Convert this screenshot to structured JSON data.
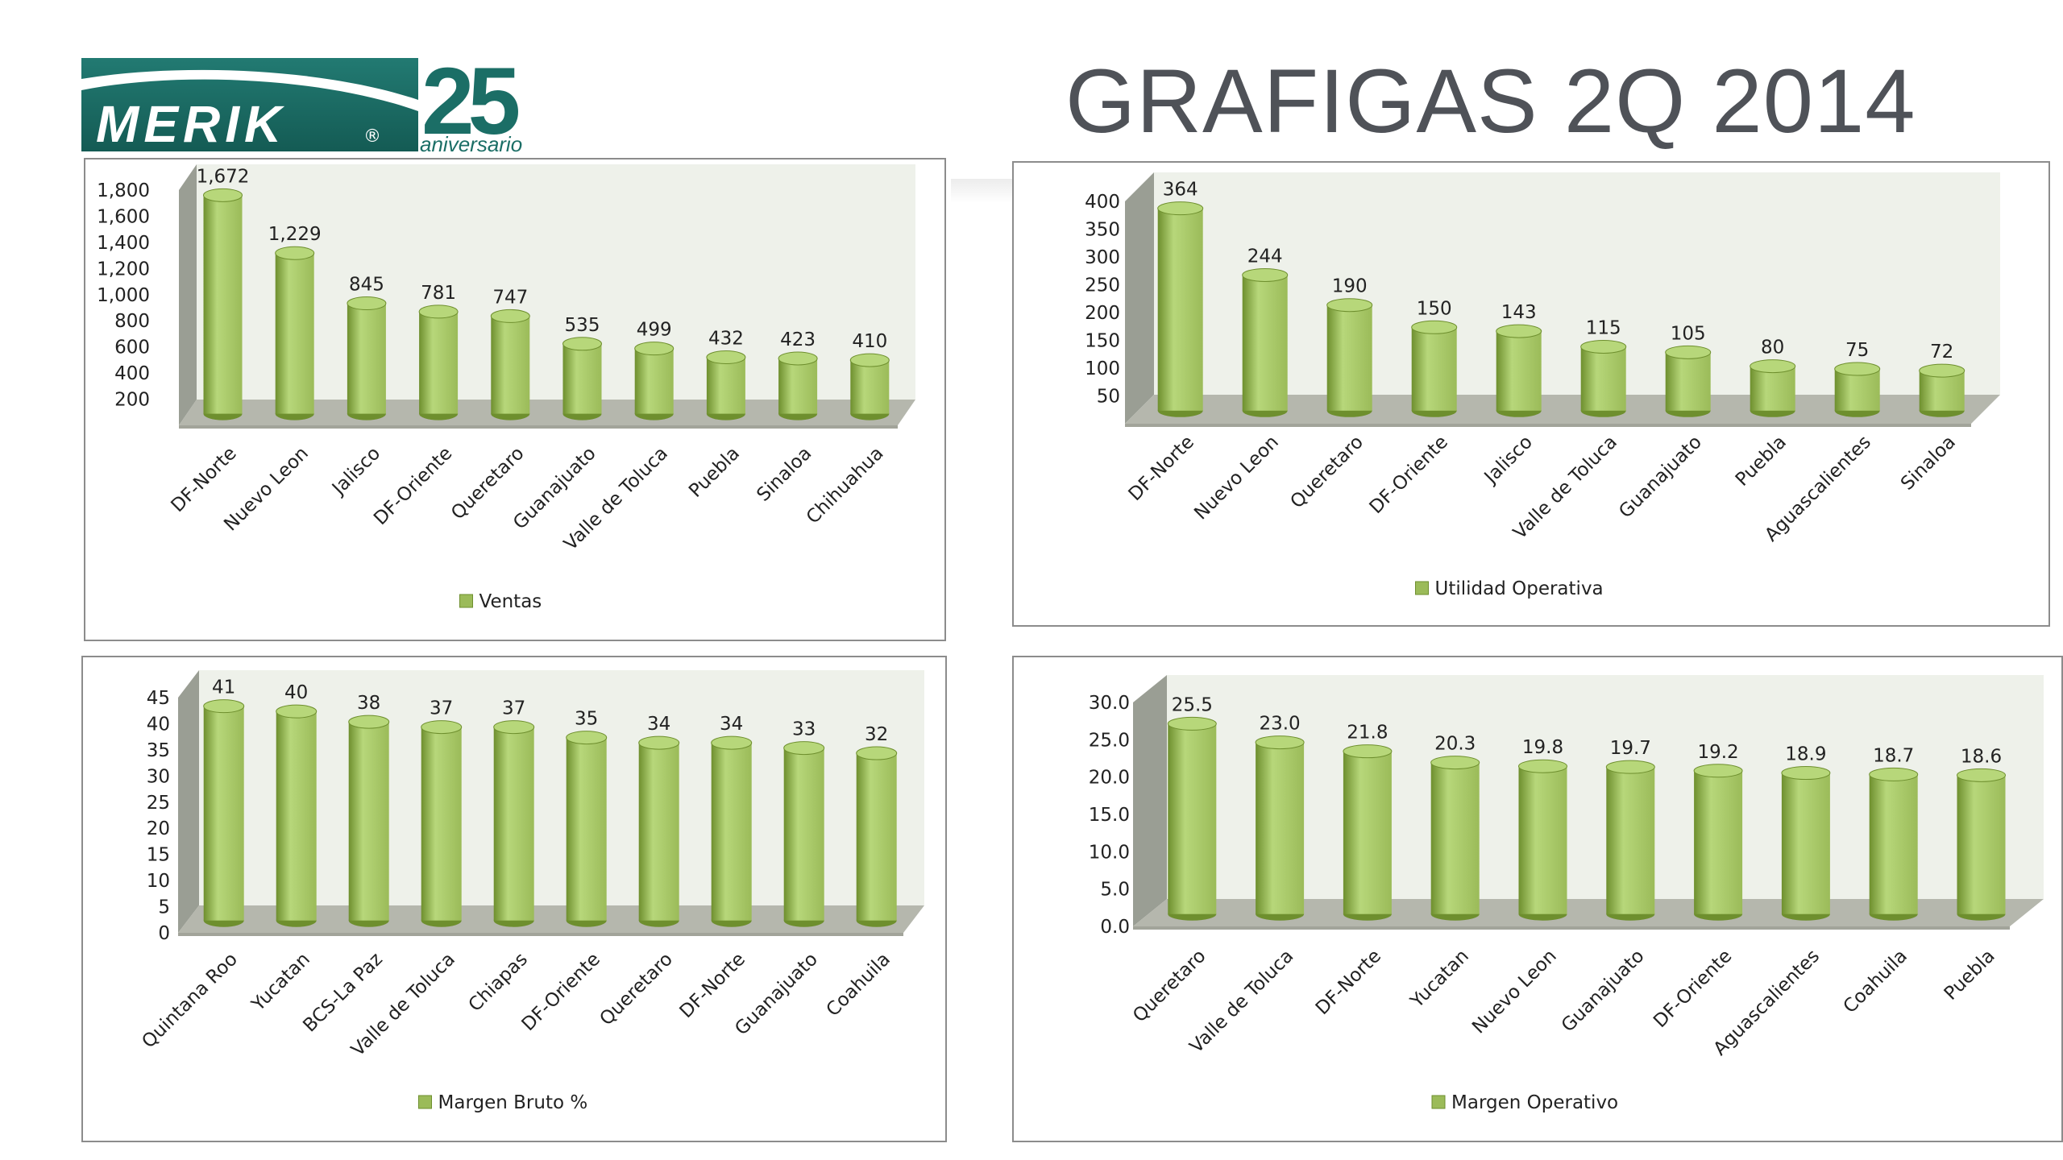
{
  "header": {
    "logo_text": "MERIK",
    "logo_number": "25",
    "logo_subtitle": "aniversario",
    "title": "GRAFIGAS 2Q 2014"
  },
  "colors": {
    "bar_body": "#9bbb59",
    "bar_top": "#b7d77a",
    "bar_dark": "#6e8f2e",
    "floor": "#b5b7ad",
    "back_wall": "#eef1ea",
    "side_wall": "#9a9e94",
    "logo_teal": "#1b6e66"
  },
  "chart_data": [
    {
      "type": "bar",
      "categories": [
        "DF-Norte",
        "Nuevo Leon",
        "Jalisco",
        "DF-Oriente",
        "Queretaro",
        "Guanajuato",
        "Valle de Toluca",
        "Puebla",
        "Sinaloa",
        "Chihuahua"
      ],
      "series": [
        {
          "name": "Ventas",
          "values": [
            1672,
            1229,
            845,
            781,
            747,
            535,
            499,
            432,
            423,
            410
          ]
        }
      ],
      "data_labels": [
        "1,672",
        "1,229",
        "845",
        "781",
        "747",
        "535",
        "499",
        "432",
        "423",
        "410"
      ],
      "ylim": [
        0,
        1800
      ],
      "yticks": [
        200,
        400,
        600,
        800,
        1000,
        1200,
        1400,
        1600,
        1800
      ],
      "ytick_labels": [
        "200",
        "400",
        "600",
        "800",
        "1,000",
        "1,200",
        "1,400",
        "1,600",
        "1,800"
      ],
      "legend": "Ventas",
      "legend_position": "bottom",
      "grid": false
    },
    {
      "type": "bar",
      "categories": [
        "DF-Norte",
        "Nuevo Leon",
        "Queretaro",
        "DF-Oriente",
        "Jalisco",
        "Valle de Toluca",
        "Guanajuato",
        "Puebla",
        "Aguascalientes",
        "Sinaloa"
      ],
      "series": [
        {
          "name": "Utilidad Operativa",
          "values": [
            364,
            244,
            190,
            150,
            143,
            115,
            105,
            80,
            75,
            72
          ]
        }
      ],
      "data_labels": [
        "364",
        "244",
        "190",
        "150",
        "143",
        "115",
        "105",
        "80",
        "75",
        "72"
      ],
      "ylim": [
        0,
        400
      ],
      "yticks": [
        50,
        100,
        150,
        200,
        250,
        300,
        350,
        400
      ],
      "ytick_labels": [
        "50",
        "100",
        "150",
        "200",
        "250",
        "300",
        "350",
        "400"
      ],
      "legend": "Utilidad Operativa",
      "legend_position": "bottom",
      "grid": false
    },
    {
      "type": "bar",
      "categories": [
        "Quintana Roo",
        "Yucatan",
        "BCS-La Paz",
        "Valle de Toluca",
        "Chiapas",
        "DF-Oriente",
        "Queretaro",
        "DF-Norte",
        "Guanajuato",
        "Coahuila"
      ],
      "series": [
        {
          "name": "Margen Bruto %",
          "values": [
            41,
            40,
            38,
            37,
            37,
            35,
            34,
            34,
            33,
            32
          ]
        }
      ],
      "data_labels": [
        "41",
        "40",
        "38",
        "37",
        "37",
        "35",
        "34",
        "34",
        "33",
        "32"
      ],
      "ylim": [
        0,
        45
      ],
      "yticks": [
        0,
        5,
        10,
        15,
        20,
        25,
        30,
        35,
        40,
        45
      ],
      "ytick_labels": [
        "0",
        "5",
        "10",
        "15",
        "20",
        "25",
        "30",
        "35",
        "40",
        "45"
      ],
      "legend": "Margen Bruto %",
      "legend_position": "bottom",
      "grid": false
    },
    {
      "type": "bar",
      "categories": [
        "Queretaro",
        "Valle de Toluca",
        "DF-Norte",
        "Yucatan",
        "Nuevo Leon",
        "Guanajuato",
        "DF-Oriente",
        "Aguascalientes",
        "Coahuila",
        "Puebla"
      ],
      "series": [
        {
          "name": "Margen Operativo",
          "values": [
            25.5,
            23.0,
            21.8,
            20.3,
            19.8,
            19.7,
            19.2,
            18.9,
            18.7,
            18.6
          ]
        }
      ],
      "data_labels": [
        "25.5",
        "23.0",
        "21.8",
        "20.3",
        "19.8",
        "19.7",
        "19.2",
        "18.9",
        "18.7",
        "18.6"
      ],
      "ylim": [
        0,
        30
      ],
      "yticks": [
        0,
        5,
        10,
        15,
        20,
        25,
        30
      ],
      "ytick_labels": [
        "0.0",
        "5.0",
        "10.0",
        "15.0",
        "20.0",
        "25.0",
        "30.0"
      ],
      "legend": "Margen Operativo",
      "legend_position": "bottom",
      "grid": false
    }
  ]
}
